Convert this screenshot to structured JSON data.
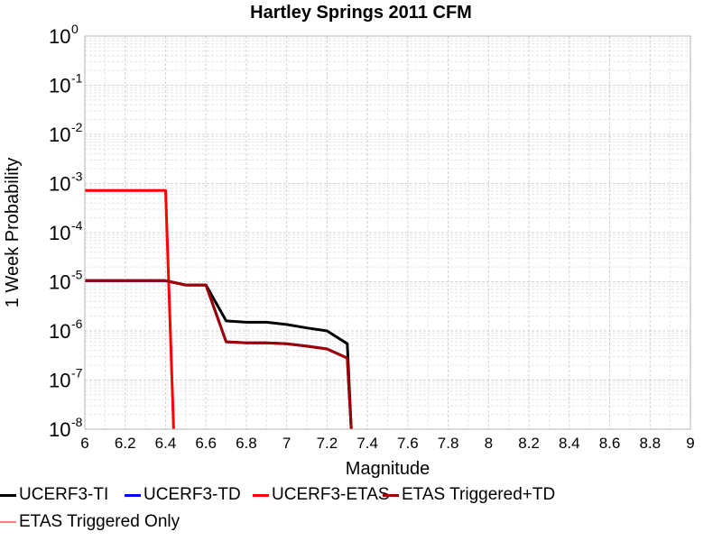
{
  "chart_data": {
    "type": "line",
    "title": "Hartley Springs 2011 CFM",
    "xlabel": "Magnitude",
    "ylabel": "1 Week Probability",
    "xlim": [
      6,
      9
    ],
    "ylim": [
      1e-08,
      1
    ],
    "y_scale": "log",
    "grid": true,
    "legend_placement": "bottom",
    "x_ticks": [
      "6",
      "6.2",
      "6.4",
      "6.6",
      "6.8",
      "7",
      "7.2",
      "7.4",
      "7.6",
      "7.8",
      "8",
      "8.2",
      "8.4",
      "8.6",
      "8.8",
      "9"
    ],
    "y_ticks": [
      {
        "base": "10",
        "exp": "0"
      },
      {
        "base": "10",
        "exp": "-1"
      },
      {
        "base": "10",
        "exp": "-2"
      },
      {
        "base": "10",
        "exp": "-3"
      },
      {
        "base": "10",
        "exp": "-4"
      },
      {
        "base": "10",
        "exp": "-5"
      },
      {
        "base": "10",
        "exp": "-6"
      },
      {
        "base": "10",
        "exp": "-7"
      },
      {
        "base": "10",
        "exp": "-8"
      }
    ],
    "series": [
      {
        "name": "UCERF3-TI",
        "color": "#000000",
        "x": [
          6.0,
          6.4,
          6.5,
          6.6,
          6.7,
          6.8,
          6.9,
          7.0,
          7.1,
          7.2,
          7.3,
          7.32
        ],
        "y": [
          1.05e-05,
          1.05e-05,
          8.6e-06,
          8.6e-06,
          1.6e-06,
          1.5e-06,
          1.5e-06,
          1.35e-06,
          1.15e-06,
          1e-06,
          5.5e-07,
          1e-09
        ]
      },
      {
        "name": "UCERF3-TD",
        "color": "#0000ff",
        "x": [
          6.0,
          6.4,
          6.5,
          6.6,
          6.7,
          6.8,
          6.9,
          7.0,
          7.1,
          7.2,
          7.3,
          7.32
        ],
        "y": [
          1.05e-05,
          1.05e-05,
          8.6e-06,
          8.6e-06,
          6e-07,
          5.7e-07,
          5.7e-07,
          5.5e-07,
          4.9e-07,
          4.3e-07,
          2.8e-07,
          1e-09
        ]
      },
      {
        "name": "UCERF3-ETAS",
        "color": "#ff0000",
        "x": [
          6.0,
          6.4,
          6.44
        ],
        "y": [
          0.00072,
          0.00072,
          1e-09
        ]
      },
      {
        "name": "ETAS Triggered+TD",
        "color": "#a00000",
        "x": [
          6.0,
          6.4,
          6.5,
          6.6,
          6.7,
          6.8,
          6.9,
          7.0,
          7.1,
          7.2,
          7.3,
          7.32
        ],
        "y": [
          1.05e-05,
          1.05e-05,
          8.6e-06,
          8.6e-06,
          6e-07,
          5.7e-07,
          5.7e-07,
          5.5e-07,
          4.9e-07,
          4.3e-07,
          2.8e-07,
          1e-09
        ]
      },
      {
        "name": "ETAS Triggered Only",
        "color": "#ff8080",
        "x": [],
        "y": []
      }
    ]
  }
}
